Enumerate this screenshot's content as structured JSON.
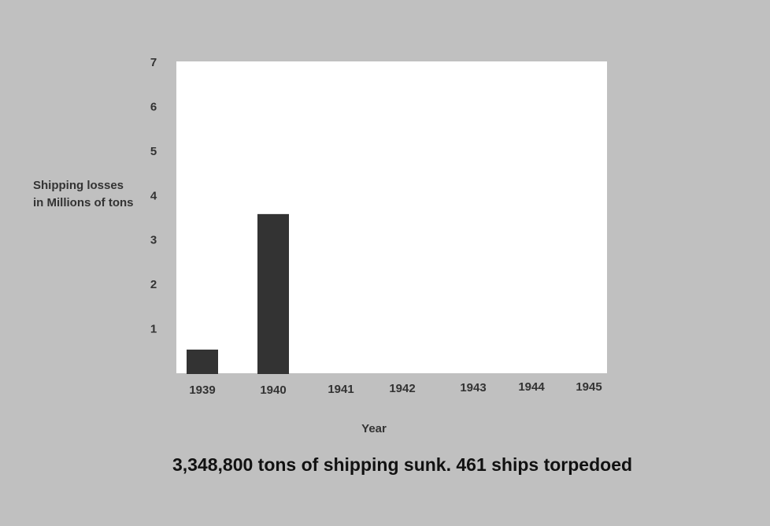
{
  "chart_data": {
    "type": "bar",
    "caption": "3,348,800 tons of shipping sunk. 461 ships torpedoed",
    "ylabel": [
      "Shipping losses",
      "in Millions of tons"
    ],
    "xlabel": "Year",
    "categories": [
      "1939",
      "1940",
      "1941",
      "1942",
      "1943",
      "1944",
      "1945"
    ],
    "values": [
      0.55,
      3.6,
      null,
      null,
      null,
      null,
      null
    ],
    "color": "#333333",
    "ylim": [
      0,
      7
    ],
    "yticks": [
      1,
      2,
      3,
      4,
      5,
      6,
      7
    ],
    "grid": false
  }
}
